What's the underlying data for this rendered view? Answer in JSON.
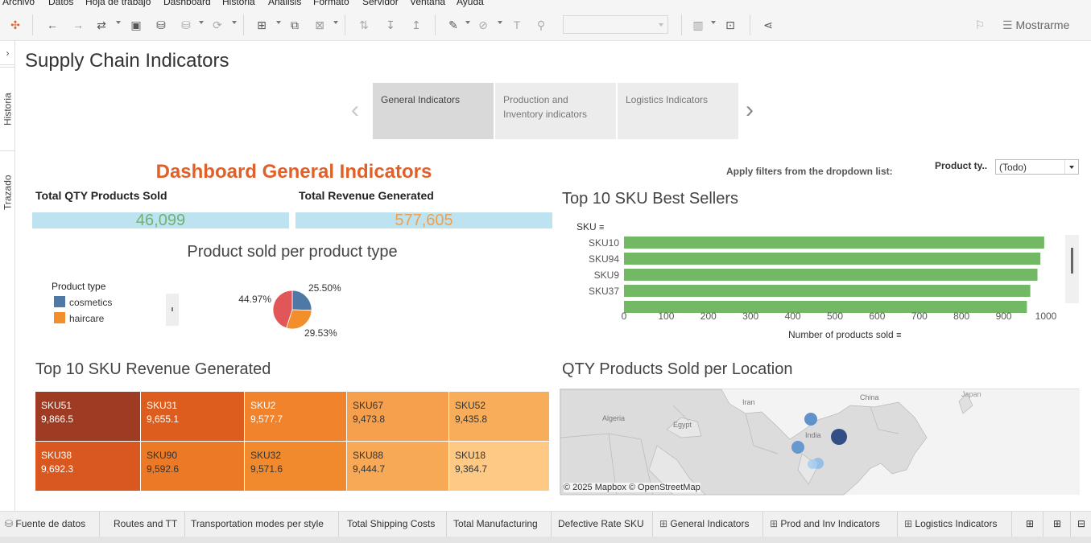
{
  "menu": [
    "Archivo",
    "Datos",
    "Hoja de trabajo",
    "Dashboard",
    "Historia",
    "Análisis",
    "Formato",
    "Servidor",
    "Ventana",
    "Ayuda"
  ],
  "toolbar": {
    "show_me_label": "Mostrarme"
  },
  "rail": {
    "historia_label": "Historia",
    "trazado_label": "Trazado"
  },
  "page_title": "Supply Chain Indicators",
  "nav_tabs": [
    {
      "label": "General Indicators"
    },
    {
      "label": "Production and Inventory indicators"
    },
    {
      "label": "Logistics Indicators"
    }
  ],
  "dashboard_title": "Dashboard General Indicators",
  "filter": {
    "hint": "Apply filters from the dropdown list:",
    "label": "Product ty..",
    "value": "(Todo)"
  },
  "kpi": {
    "qty_label": "Total QTY Products Sold",
    "qty_value": "46,099",
    "revenue_label": "Total Revenue Generated",
    "revenue_value": "577,605"
  },
  "colors": {
    "accent": "#e0602a",
    "qty": "#6fb36f",
    "revenue": "#f0a04b",
    "kpi_bg": "#bde3f1",
    "bar": "#73b965"
  },
  "pie_chart": {
    "title": "Product sold per product type",
    "legend_title": "Product type",
    "legend": [
      {
        "name": "cosmetics",
        "color": "#4e79a7"
      },
      {
        "name": "haircare",
        "color": "#f28e2b"
      }
    ],
    "chart_data": {
      "type": "pie",
      "slices": [
        {
          "label": "25.50%",
          "value": 25.5,
          "color": "#4e79a7"
        },
        {
          "label": "29.53%",
          "value": 29.53,
          "color": "#f28e2b"
        },
        {
          "label": "44.97%",
          "value": 44.97,
          "color": "#e15759"
        }
      ]
    }
  },
  "bar_chart": {
    "title": "Top 10 SKU Best Sellers",
    "y_header": "SKU",
    "x_label": "Number of products sold",
    "chart_data": {
      "type": "bar",
      "orientation": "horizontal",
      "categories": [
        "SKU10",
        "SKU94",
        "SKU9",
        "SKU37"
      ],
      "values": [
        996,
        987,
        980,
        963
      ],
      "xlim": [
        0,
        1000
      ],
      "xticks": [
        0,
        100,
        200,
        300,
        400,
        500,
        600,
        700,
        800,
        900,
        1000
      ]
    }
  },
  "treemap": {
    "title": "Top 10 SKU Revenue Generated",
    "cells": [
      {
        "sku": "SKU51",
        "value": "9,866.5",
        "color": "#9e3b22"
      },
      {
        "sku": "SKU31",
        "value": "9,655.1",
        "color": "#dd5d1f"
      },
      {
        "sku": "SKU2",
        "value": "9,577.7",
        "color": "#f0832b"
      },
      {
        "sku": "SKU67",
        "value": "9,473.8",
        "color": "#f6a04d"
      },
      {
        "sku": "SKU52",
        "value": "9,435.8",
        "color": "#f7ad59"
      },
      {
        "sku": "SKU38",
        "value": "9,692.3",
        "color": "#d9581f"
      },
      {
        "sku": "SKU90",
        "value": "9,592.6",
        "color": "#ec7925"
      },
      {
        "sku": "SKU32",
        "value": "9,571.6",
        "color": "#f08a2d"
      },
      {
        "sku": "SKU88",
        "value": "9,444.7",
        "color": "#f7a955"
      },
      {
        "sku": "SKU18",
        "value": "9,364.7",
        "color": "#fdc985"
      }
    ]
  },
  "map": {
    "title": "QTY Products Sold per Location",
    "labels": [
      "Iran",
      "China",
      "Japan",
      "Algeria",
      "Egypt",
      "India"
    ],
    "attribution": "© 2025 Mapbox © OpenStreetMap"
  },
  "bottom_tabs": [
    "Fuente de datos",
    "Routes and TT",
    "Transportation modes per style",
    "Total Shipping Costs",
    "Total Manufacturing",
    "Defective Rate SKU",
    "General Indicators",
    "Prod and Inv  Indicators",
    "Logistics Indicators"
  ]
}
